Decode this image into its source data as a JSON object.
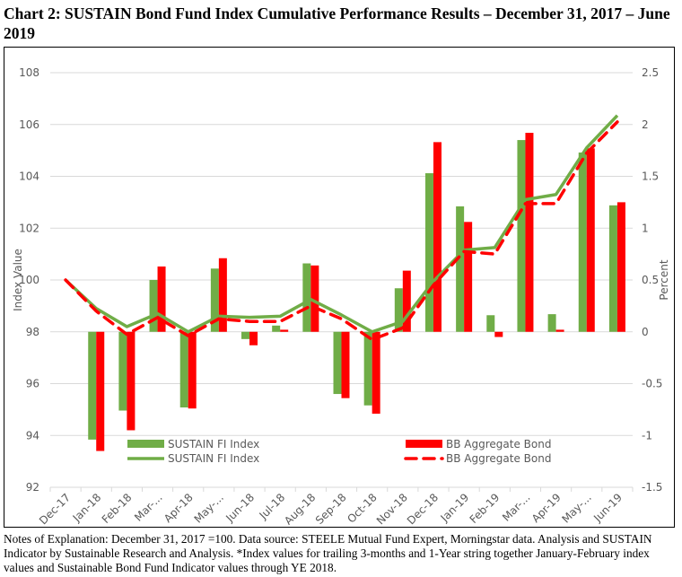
{
  "title": "Chart 2:  SUSTAIN Bond Fund Index Cumulative Performance Results – December 31, 2017 – June 2019",
  "notes": "Notes of Explanation:  December 31, 2017 =100.  Data source:  STEELE Mutual Fund Expert, Morningstar data. Analysis and SUSTAIN Indicator by Sustainable Research and Analysis.  *Index values for trailing 3-months and 1-Year string together January-February index values and Sustainable Bond Fund Indicator values through YE 2018.",
  "chart_data": {
    "type": "bar+line",
    "categories": [
      "Dec-17",
      "Jan-18",
      "Feb-18",
      "Mar-...",
      "Apr-18",
      "May-...",
      "Jun-18",
      "Jul-18",
      "Aug-18",
      "Sep-18",
      "Oct-18",
      "Nov-18",
      "Dec-18",
      "Jan-19",
      "Feb-19",
      "Mar-...",
      "Apr-19",
      "May-...",
      "Jun-19"
    ],
    "ylabel": "Index Value",
    "y2label": "Percent",
    "ylim": [
      92,
      108
    ],
    "yticks": [
      "92",
      "94",
      "96",
      "98",
      "100",
      "102",
      "104",
      "106",
      "108"
    ],
    "y2lim": [
      -1.5,
      2.5
    ],
    "y2ticks": [
      "-1.5",
      "-1",
      "-0.5",
      "0",
      "0.5",
      "1",
      "1.5",
      "2",
      "2.5"
    ],
    "grid": true,
    "legend_placement": "bottom",
    "bar_series": [
      {
        "name": "SUSTAIN FI Index",
        "axis": "right",
        "color": "#70ad47",
        "values": [
          null,
          -1.04,
          -0.76,
          0.5,
          -0.73,
          0.61,
          -0.07,
          0.06,
          0.66,
          -0.6,
          -0.71,
          0.42,
          1.53,
          1.21,
          0.16,
          1.85,
          0.17,
          1.73,
          1.22
        ]
      },
      {
        "name": "BB Aggregate Bond",
        "axis": "right",
        "color": "#ff0000",
        "values": [
          null,
          -1.15,
          -0.95,
          0.63,
          -0.74,
          0.71,
          -0.13,
          0.02,
          0.64,
          -0.64,
          -0.79,
          0.59,
          1.83,
          1.06,
          -0.05,
          1.92,
          0.02,
          1.77,
          1.25
        ]
      }
    ],
    "line_series": [
      {
        "name": "SUSTAIN FI Index",
        "axis": "left",
        "color": "#70ad47",
        "style": "solid",
        "values": [
          100,
          98.9,
          98.2,
          98.7,
          98.0,
          98.6,
          98.56,
          98.6,
          99.25,
          98.65,
          98.0,
          98.4,
          99.95,
          101.15,
          101.25,
          103.1,
          103.3,
          105.1,
          106.35
        ]
      },
      {
        "name": "BB Aggregate Bond",
        "axis": "left",
        "color": "#ff0000",
        "style": "dashed",
        "values": [
          100,
          98.8,
          97.9,
          98.55,
          97.85,
          98.5,
          98.4,
          98.4,
          99.0,
          98.5,
          97.7,
          98.15,
          99.8,
          101.1,
          101.0,
          102.95,
          102.95,
          104.9,
          106.1
        ]
      }
    ]
  }
}
